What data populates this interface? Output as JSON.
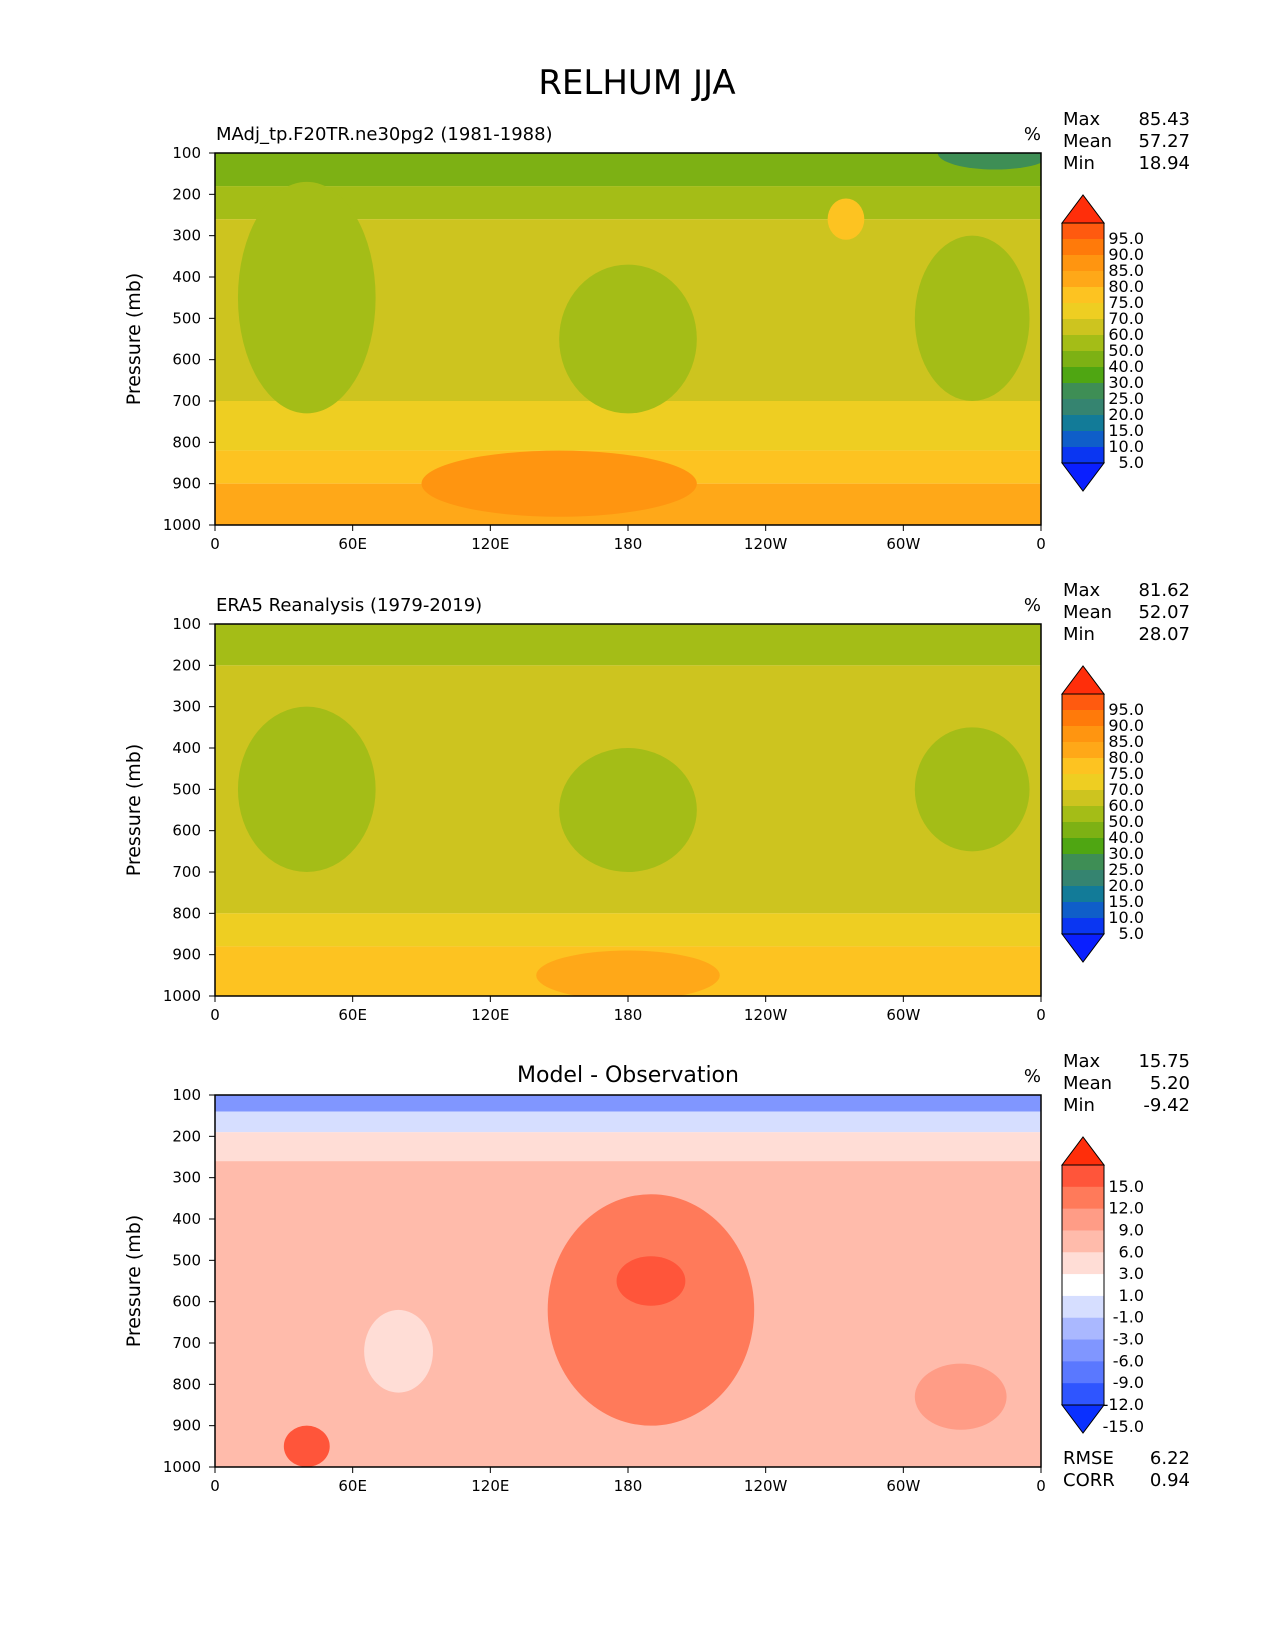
{
  "figure": {
    "title": "RELHUM JJA"
  },
  "chart_data": [
    {
      "type": "contour",
      "title": "MAdj_tp.F20TR.ne30pg2 (1981-1988)",
      "units": "%",
      "ylabel": "Pressure (mb)",
      "xlabel": "",
      "x_ticks": [
        "0",
        "60E",
        "120E",
        "180",
        "120W",
        "60W",
        "0"
      ],
      "y_ticks": [
        "100",
        "200",
        "300",
        "400",
        "500",
        "600",
        "700",
        "800",
        "900",
        "1000"
      ],
      "xlim": [
        0,
        360
      ],
      "ylim": [
        1000,
        100
      ],
      "stats": [
        {
          "label": "Max",
          "value": "85.43"
        },
        {
          "label": "Mean",
          "value": "57.27"
        },
        {
          "label": "Min",
          "value": "18.94"
        }
      ],
      "colorbar": {
        "labels": [
          "95.0",
          "90.0",
          "85.0",
          "80.0",
          "75.0",
          "70.0",
          "60.0",
          "50.0",
          "40.0",
          "30.0",
          "25.0",
          "20.0",
          "15.0",
          "10.0",
          "5.0"
        ],
        "colors": [
          "#FF2E0A",
          "#FF5A0F",
          "#FF7A0A",
          "#FF9510",
          "#FFA818",
          "#FDC321",
          "#EECE22",
          "#CDC41F",
          "#A4BD17",
          "#7DB114",
          "#4FA612",
          "#3E8E55",
          "#358470",
          "#127B98",
          "#0F5EC9",
          "#0A36F2",
          "#0A1FFF"
        ]
      },
      "bands": [
        {
          "p_top": 100,
          "p_bottom": 180,
          "value": 30
        },
        {
          "p_top": 180,
          "p_bottom": 260,
          "value": 45
        },
        {
          "p_top": 260,
          "p_bottom": 700,
          "value": 55
        },
        {
          "p_top": 700,
          "p_bottom": 820,
          "value": 67
        },
        {
          "p_top": 820,
          "p_bottom": 900,
          "value": 72
        },
        {
          "p_top": 900,
          "p_bottom": 1000,
          "value": 78
        }
      ],
      "features": [
        {
          "lon": 180,
          "p": 550,
          "rx": 30,
          "rp": 180,
          "value": 45
        },
        {
          "lon": 330,
          "p": 500,
          "rx": 25,
          "rp": 200,
          "value": 45
        },
        {
          "lon": 40,
          "p": 450,
          "rx": 30,
          "rp": 280,
          "value": 45
        },
        {
          "lon": 150,
          "p": 900,
          "rx": 60,
          "rp": 80,
          "value": 80
        },
        {
          "lon": 340,
          "p": 100,
          "rx": 25,
          "rp": 40,
          "value": 22
        },
        {
          "lon": 275,
          "p": 260,
          "rx": 8,
          "rp": 50,
          "value": 72
        }
      ]
    },
    {
      "type": "contour",
      "title": "ERA5 Reanalysis (1979-2019)",
      "units": "%",
      "ylabel": "Pressure (mb)",
      "xlabel": "",
      "x_ticks": [
        "0",
        "60E",
        "120E",
        "180",
        "120W",
        "60W",
        "0"
      ],
      "y_ticks": [
        "100",
        "200",
        "300",
        "400",
        "500",
        "600",
        "700",
        "800",
        "900",
        "1000"
      ],
      "xlim": [
        0,
        360
      ],
      "ylim": [
        1000,
        100
      ],
      "stats": [
        {
          "label": "Max",
          "value": "81.62"
        },
        {
          "label": "Mean",
          "value": "52.07"
        },
        {
          "label": "Min",
          "value": "28.07"
        }
      ],
      "colorbar": {
        "labels": [
          "95.0",
          "90.0",
          "85.0",
          "80.0",
          "75.0",
          "70.0",
          "60.0",
          "50.0",
          "40.0",
          "30.0",
          "25.0",
          "20.0",
          "15.0",
          "10.0",
          "5.0"
        ],
        "colors": [
          "#FF2E0A",
          "#FF5A0F",
          "#FF7A0A",
          "#FF9510",
          "#FFA818",
          "#FDC321",
          "#EECE22",
          "#CDC41F",
          "#A4BD17",
          "#7DB114",
          "#4FA612",
          "#3E8E55",
          "#358470",
          "#127B98",
          "#0F5EC9",
          "#0A36F2",
          "#0A1FFF"
        ]
      },
      "bands": [
        {
          "p_top": 100,
          "p_bottom": 200,
          "value": 45
        },
        {
          "p_top": 200,
          "p_bottom": 800,
          "value": 55
        },
        {
          "p_top": 800,
          "p_bottom": 880,
          "value": 62
        },
        {
          "p_top": 880,
          "p_bottom": 1000,
          "value": 72
        }
      ],
      "features": [
        {
          "lon": 40,
          "p": 500,
          "rx": 30,
          "rp": 200,
          "value": 45
        },
        {
          "lon": 180,
          "p": 550,
          "rx": 30,
          "rp": 150,
          "value": 45
        },
        {
          "lon": 330,
          "p": 500,
          "rx": 25,
          "rp": 150,
          "value": 45
        },
        {
          "lon": 180,
          "p": 950,
          "rx": 40,
          "rp": 60,
          "value": 76
        }
      ]
    },
    {
      "type": "contour",
      "title": "Model - Observation",
      "units": "%",
      "ylabel": "Pressure (mb)",
      "xlabel": "",
      "x_ticks": [
        "0",
        "60E",
        "120E",
        "180",
        "120W",
        "60W",
        "0"
      ],
      "y_ticks": [
        "100",
        "200",
        "300",
        "400",
        "500",
        "600",
        "700",
        "800",
        "900",
        "1000"
      ],
      "xlim": [
        0,
        360
      ],
      "ylim": [
        1000,
        100
      ],
      "stats": [
        {
          "label": "Max",
          "value": "15.75"
        },
        {
          "label": "Mean",
          "value": "5.20"
        },
        {
          "label": "Min",
          "value": "-9.42"
        }
      ],
      "metrics": [
        {
          "label": "RMSE",
          "value": "6.22"
        },
        {
          "label": "CORR",
          "value": "0.94"
        }
      ],
      "colorbar": {
        "labels": [
          "15.0",
          "12.0",
          "9.0",
          "6.0",
          "3.0",
          "1.0",
          "-1.0",
          "-3.0",
          "-6.0",
          "-9.0",
          "-12.0",
          "-15.0"
        ],
        "colors": [
          "#FF2E0A",
          "#FF553A",
          "#FF7A5A",
          "#FF9C86",
          "#FFBBAB",
          "#FFDDD6",
          "#FFFFFF",
          "#D6DEFF",
          "#AAB8FF",
          "#8096FF",
          "#5A78FF",
          "#2F55FF",
          "#0A30FF"
        ]
      },
      "bands": [
        {
          "p_top": 100,
          "p_bottom": 140,
          "value": -7
        },
        {
          "p_top": 140,
          "p_bottom": 190,
          "value": -2
        },
        {
          "p_top": 190,
          "p_bottom": 260,
          "value": 2
        },
        {
          "p_top": 260,
          "p_bottom": 1000,
          "value": 5
        }
      ],
      "features": [
        {
          "lon": 190,
          "p": 620,
          "rx": 45,
          "rp": 280,
          "value": 10
        },
        {
          "lon": 190,
          "p": 550,
          "rx": 15,
          "rp": 60,
          "value": 13
        },
        {
          "lon": 80,
          "p": 720,
          "rx": 15,
          "rp": 100,
          "value": 2
        },
        {
          "lon": 40,
          "p": 950,
          "rx": 10,
          "rp": 50,
          "value": 13
        },
        {
          "lon": 325,
          "p": 830,
          "rx": 20,
          "rp": 80,
          "value": 7
        }
      ]
    }
  ]
}
